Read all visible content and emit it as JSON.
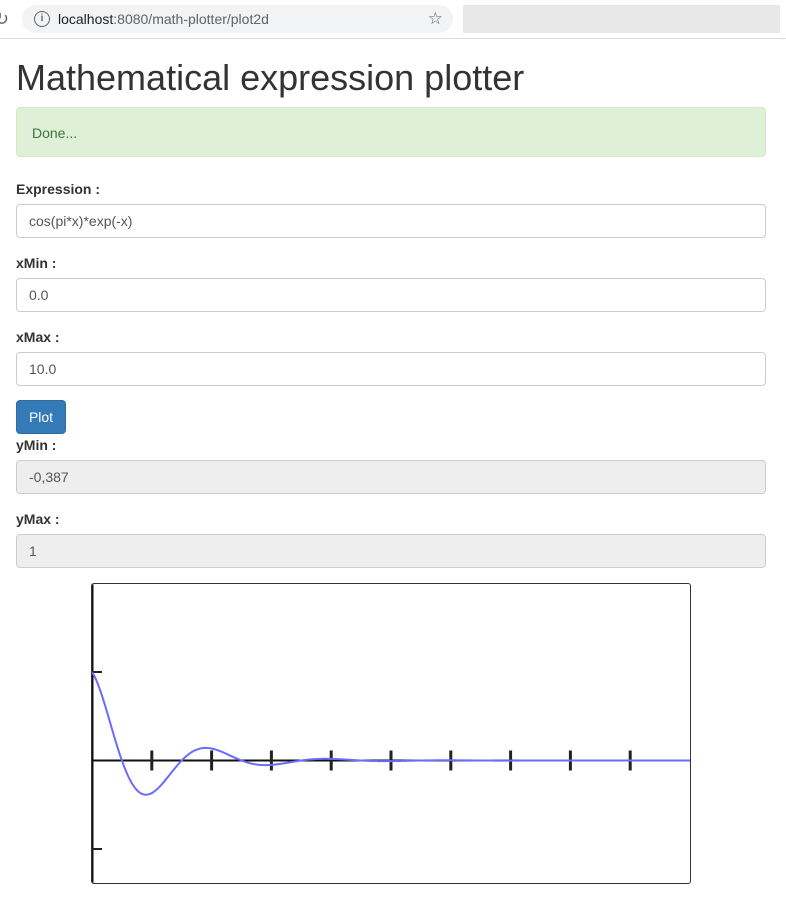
{
  "browser": {
    "url_host": "localhost",
    "url_path": ":8080/math-plotter/plot2d"
  },
  "page": {
    "title": "Mathematical expression plotter",
    "status": "Done..."
  },
  "form": {
    "expression_label": "Expression :",
    "expression_value": "cos(pi*x)*exp(-x)",
    "xmin_label": "xMin :",
    "xmin_value": "0.0",
    "xmax_label": "xMax :",
    "xmax_value": "10.0",
    "plot_button": "Plot",
    "ymin_label": "yMin :",
    "ymin_value": "-0,387",
    "ymax_label": "yMax :",
    "ymax_value": "1"
  },
  "chart_data": {
    "type": "line",
    "expression": "cos(pi*x)*exp(-x)",
    "xlim": [
      0,
      10
    ],
    "ylim": [
      -1,
      1
    ],
    "x_ticks": [
      0,
      1,
      2,
      3,
      4,
      5,
      6,
      7,
      8,
      9
    ],
    "y_ticks": [
      -1,
      0,
      1
    ],
    "series_color": "#6b6bff",
    "axis_color": "#111111"
  }
}
